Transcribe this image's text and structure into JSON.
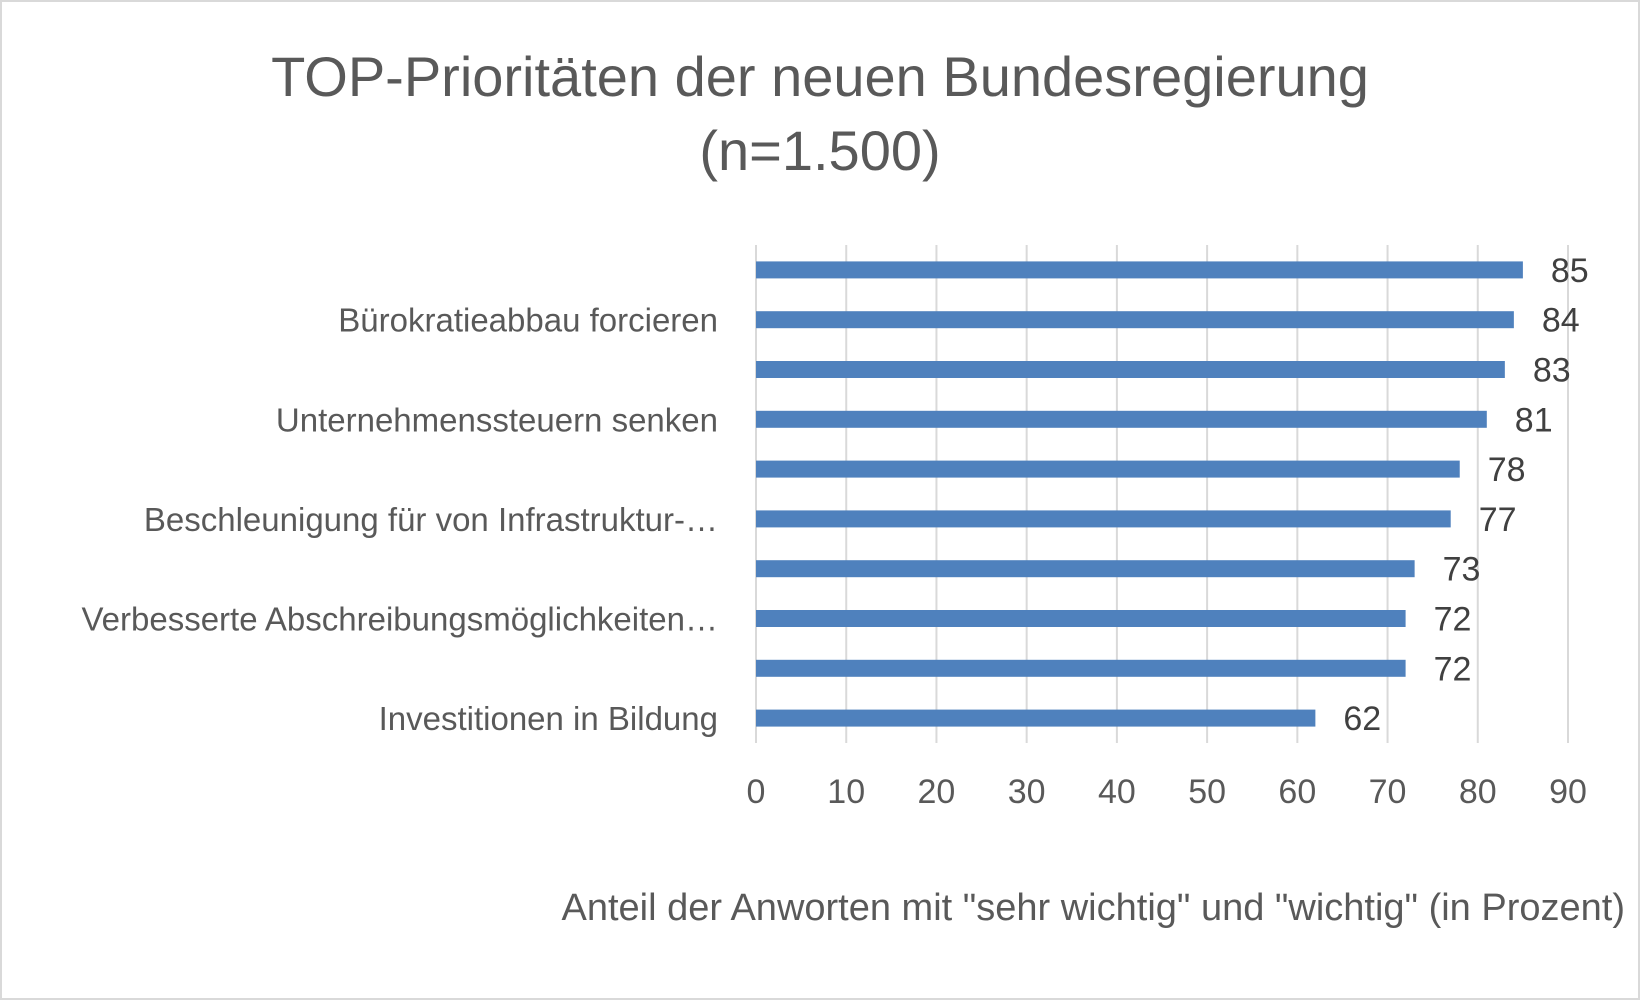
{
  "chart_data": {
    "type": "bar",
    "orientation": "horizontal",
    "title": "TOP-Prioritäten der neuen Bundesregierung\n(n=1.500)",
    "xlabel": "Anteil der Anworten mit \"sehr wichtig\" und \"wichtig\" (in Prozent)",
    "ylabel": "",
    "xlim": [
      0,
      90
    ],
    "xticks": [
      0,
      10,
      20,
      30,
      40,
      50,
      60,
      70,
      80,
      90
    ],
    "grid": true,
    "legend": "none",
    "colors": {
      "bar": "#4f81bd",
      "text": "#595959",
      "grid": "#d9d9d9"
    },
    "categories": [
      "",
      "Bürokratieabbau forcieren",
      "",
      "Unternehmenssteuern senken",
      "",
      "Beschleunigung für von Infrastruktur-…",
      "",
      "Verbesserte Abschreibungsmöglichkeiten…",
      "",
      "Investitionen in  Bildung"
    ],
    "values": [
      85,
      84,
      83,
      81,
      78,
      77,
      73,
      72,
      72,
      62
    ]
  }
}
